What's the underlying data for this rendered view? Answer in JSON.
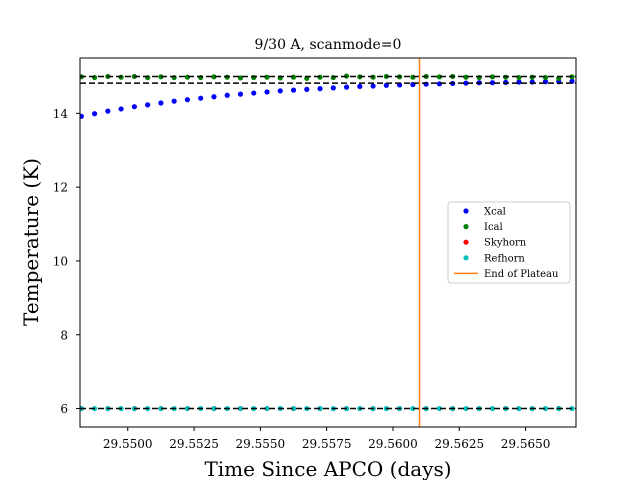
{
  "chart_data": {
    "type": "scatter",
    "title": "9/30 A, scanmode=0",
    "xlabel": "Time Since APCO (days)",
    "ylabel": "Temperature (K)",
    "xlim": [
      29.5482,
      29.5669
    ],
    "ylim": [
      5.5,
      15.5
    ],
    "x_ticks": [
      29.55,
      29.5525,
      29.555,
      29.5575,
      29.56,
      29.5625,
      29.565
    ],
    "x_tick_labels": [
      "29.5500",
      "29.5525",
      "29.5550",
      "29.5575",
      "29.5600",
      "29.5625",
      "29.5650"
    ],
    "y_ticks": [
      6,
      8,
      10,
      12,
      14
    ],
    "y_tick_labels": [
      "6",
      "8",
      "10",
      "12",
      "14"
    ],
    "grid": false,
    "legend_position": "center-right",
    "reference_lines": {
      "horizontal_dashed": [
        15.0,
        14.82,
        6.0
      ],
      "vertical_end_of_plateau": 29.561
    },
    "series": [
      {
        "name": "Xcal",
        "color": "#0000ff",
        "x": [
          29.54825,
          29.54875,
          29.54925,
          29.54975,
          29.55025,
          29.55075,
          29.55125,
          29.55175,
          29.55225,
          29.55275,
          29.55325,
          29.55375,
          29.55425,
          29.55475,
          29.55525,
          29.55575,
          29.55625,
          29.55675,
          29.55725,
          29.55775,
          29.55825,
          29.55875,
          29.55925,
          29.55975,
          29.56025,
          29.56075,
          29.56125,
          29.56175,
          29.56225,
          29.56275,
          29.56325,
          29.56375,
          29.56425,
          29.56475,
          29.56525,
          29.56575,
          29.56625,
          29.56675
        ],
        "y": [
          13.92,
          13.99,
          14.06,
          14.12,
          14.18,
          14.23,
          14.28,
          14.33,
          14.37,
          14.41,
          14.45,
          14.49,
          14.52,
          14.55,
          14.58,
          14.61,
          14.63,
          14.65,
          14.67,
          14.69,
          14.71,
          14.73,
          14.74,
          14.76,
          14.77,
          14.78,
          14.79,
          14.8,
          14.81,
          14.82,
          14.83,
          14.83,
          14.84,
          14.85,
          14.85,
          14.86,
          14.86,
          14.87
        ]
      },
      {
        "name": "Ical",
        "color": "#008000",
        "x": [
          29.54825,
          29.54875,
          29.54925,
          29.54975,
          29.55025,
          29.55075,
          29.55125,
          29.55175,
          29.55225,
          29.55275,
          29.55325,
          29.55375,
          29.55425,
          29.55475,
          29.55525,
          29.55575,
          29.55625,
          29.55675,
          29.55725,
          29.55775,
          29.55825,
          29.55875,
          29.55925,
          29.55975,
          29.56025,
          29.56075,
          29.56125,
          29.56175,
          29.56225,
          29.56275,
          29.56325,
          29.56375,
          29.56425,
          29.56475,
          29.56525,
          29.56575,
          29.56625,
          29.56675
        ],
        "y": [
          14.99,
          14.97,
          15.0,
          14.98,
          15.0,
          14.97,
          14.99,
          14.97,
          14.98,
          14.97,
          14.99,
          14.98,
          14.96,
          14.97,
          14.98,
          14.96,
          14.98,
          14.95,
          14.98,
          14.97,
          15.01,
          14.99,
          14.98,
          15.0,
          14.99,
          14.98,
          15.0,
          14.99,
          15.0,
          14.98,
          14.97,
          14.99,
          14.98,
          14.97,
          14.98,
          14.97,
          14.95,
          14.99
        ]
      },
      {
        "name": "Skyhorn",
        "color": "#ff0000",
        "x": [
          29.54825,
          29.54925,
          29.55025,
          29.55125,
          29.55225,
          29.55325,
          29.55425,
          29.55525,
          29.55625,
          29.55725,
          29.55825,
          29.55925,
          29.56025,
          29.56125,
          29.56225,
          29.56325,
          29.56425,
          29.56525,
          29.56625
        ],
        "y": [
          6.0,
          6.0,
          6.0,
          6.0,
          6.0,
          6.0,
          6.0,
          6.0,
          6.0,
          6.0,
          6.0,
          6.0,
          6.0,
          6.0,
          6.0,
          6.0,
          6.0,
          6.0,
          6.0
        ]
      },
      {
        "name": "Refhorn",
        "color": "#00bfbf",
        "x": [
          29.54825,
          29.54875,
          29.54925,
          29.54975,
          29.55025,
          29.55075,
          29.55125,
          29.55175,
          29.55225,
          29.55275,
          29.55325,
          29.55375,
          29.55425,
          29.55475,
          29.55525,
          29.55575,
          29.55625,
          29.55675,
          29.55725,
          29.55775,
          29.55825,
          29.55875,
          29.55925,
          29.55975,
          29.56025,
          29.56075,
          29.56125,
          29.56175,
          29.56225,
          29.56275,
          29.56325,
          29.56375,
          29.56425,
          29.56475,
          29.56525,
          29.56575,
          29.56625,
          29.56675
        ],
        "y": [
          6.0,
          6.0,
          6.0,
          6.0,
          6.0,
          6.0,
          6.0,
          6.0,
          6.0,
          6.0,
          6.0,
          6.0,
          6.0,
          6.0,
          6.0,
          6.0,
          6.0,
          6.0,
          6.0,
          6.0,
          6.0,
          6.0,
          6.0,
          6.0,
          6.0,
          6.0,
          6.0,
          6.0,
          6.0,
          6.0,
          6.0,
          6.0,
          6.0,
          6.0,
          6.0,
          6.0,
          6.0,
          6.0
        ]
      },
      {
        "name": "End of Plateau",
        "color": "#ff7f0e",
        "kind": "vertical-line"
      }
    ]
  }
}
